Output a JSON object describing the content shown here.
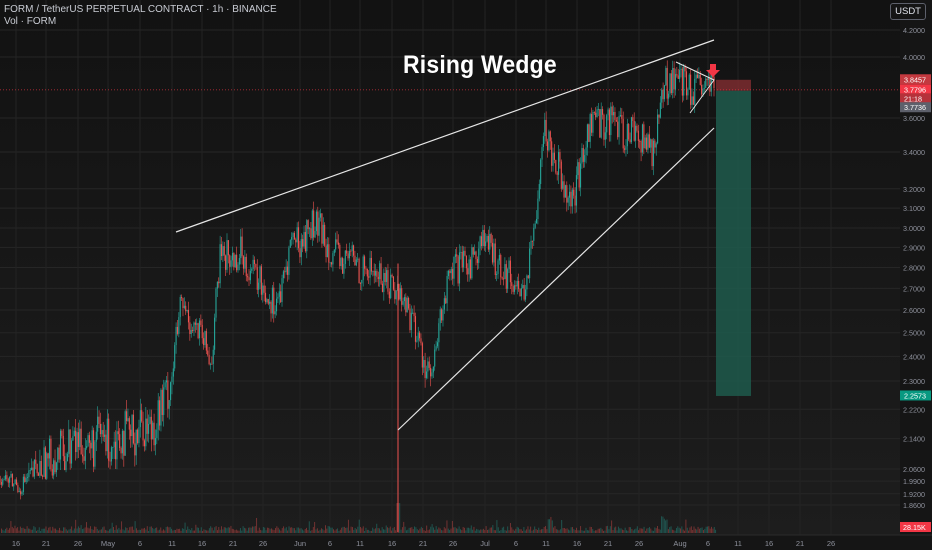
{
  "header": {
    "symbol": "FORM / TetherUS PERPETUAL CONTRACT · 1h · BINANCE",
    "volume_label": "Vol · FORM",
    "currency": "USDT"
  },
  "annotation": {
    "text": "Rising Wedge"
  },
  "chart_data": {
    "type": "line",
    "scale": "log",
    "ylim": [
      1.8,
      4.2
    ],
    "y_ticks": [
      "4.2000",
      "4.0000",
      "3.6000",
      "3.4000",
      "3.2000",
      "3.1000",
      "3.0000",
      "2.9000",
      "2.8000",
      "2.7000",
      "2.6000",
      "2.5000",
      "2.4000",
      "2.3000",
      "2.2200",
      "2.1400",
      "2.0600",
      "1.9900",
      "1.9200",
      "1.8600"
    ],
    "x_ticks": [
      "16",
      "21",
      "26",
      "May",
      "6",
      "11",
      "16",
      "21",
      "26",
      "Jun",
      "6",
      "11",
      "16",
      "21",
      "26",
      "Jul",
      "6",
      "11",
      "16",
      "21",
      "26",
      "Aug",
      "6",
      "11",
      "16",
      "21",
      "26"
    ],
    "price_labels": [
      {
        "text": "3.8457",
        "kind": "stop"
      },
      {
        "text": "3.7796",
        "kind": "last"
      },
      {
        "text": "21:18",
        "kind": "countdown"
      },
      {
        "text": "3.7736",
        "kind": "entry"
      },
      {
        "text": "2.2573",
        "kind": "target"
      }
    ],
    "volume_label": "28.15K",
    "series": [
      {
        "values": [
          2.02,
          1.99,
          1.96,
          2.02,
          2.05,
          2.08,
          2.1,
          2.12,
          2.14,
          2.11,
          2.15,
          2.13,
          2.16,
          2.14,
          2.18,
          2.17,
          2.22,
          2.3,
          2.62,
          2.55,
          2.48,
          2.37,
          2.9,
          2.83,
          2.88,
          2.78,
          2.72,
          2.64,
          2.67,
          2.95,
          2.92,
          3.02,
          2.98,
          2.88,
          2.82,
          2.86,
          2.78,
          2.79,
          2.75,
          2.72,
          2.66,
          2.56,
          2.4,
          2.3,
          2.62,
          2.78,
          2.8,
          2.84,
          2.95,
          2.86,
          2.8,
          2.74,
          2.68,
          2.9,
          3.55,
          3.4,
          3.26,
          3.12,
          3.4,
          3.62,
          3.56,
          3.61,
          3.48,
          3.55,
          3.45,
          3.41,
          3.8,
          3.88,
          3.82,
          3.76,
          3.8,
          3.78
        ]
      }
    ],
    "wedge_upper": [
      {
        "x": "Apr 30",
        "y": 2.98
      },
      {
        "x": "Aug 6",
        "y": 4.1
      }
    ],
    "wedge_lower": [
      {
        "x": "Jun 14",
        "y": 2.13
      },
      {
        "x": "Aug 6",
        "y": 3.48
      }
    ],
    "trade": {
      "entry": 3.7736,
      "stop": 3.8457,
      "target": 2.2573
    }
  },
  "colors": {
    "background": "#151515",
    "candle_up": "#26a69a",
    "candle_down": "#ef5350",
    "stop_zone": "#8a2f33",
    "target_zone": "#1f5a4c",
    "last_price": "#f23645",
    "target_label": "#089981"
  }
}
